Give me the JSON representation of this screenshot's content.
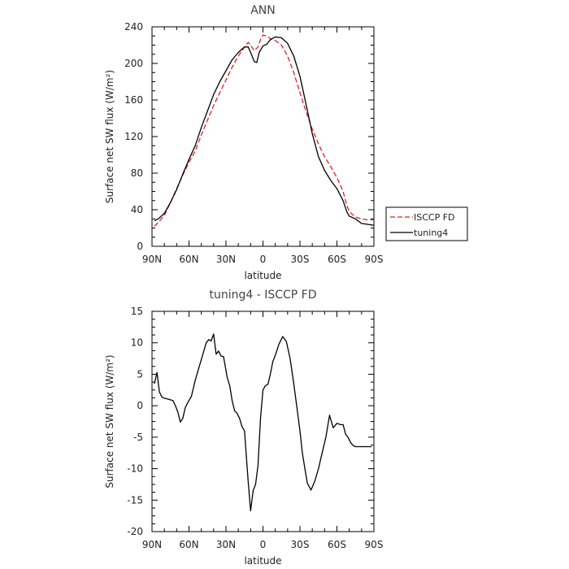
{
  "chart_data": [
    {
      "type": "line",
      "title": "ANN",
      "xlabel": "latitude",
      "ylabel": "Surface net SW flux (W/m²)",
      "xlim": [
        -90,
        90
      ],
      "ylim": [
        0,
        240
      ],
      "xticks": [
        -90,
        -60,
        -30,
        0,
        30,
        60,
        90
      ],
      "xtick_labels": [
        "90N",
        "60N",
        "30N",
        "0",
        "30S",
        "60S",
        "90S"
      ],
      "yticks": [
        0,
        40,
        80,
        120,
        160,
        200,
        240
      ],
      "ytick_labels": [
        "0",
        "40",
        "80",
        "120",
        "160",
        "200",
        "240"
      ],
      "grid": false,
      "legend_position": "right",
      "series": [
        {
          "name": "ISCCP FD",
          "color": "#e02020",
          "dash": "dashed",
          "x": [
            -88,
            -85,
            -80,
            -75,
            -70,
            -65,
            -60,
            -55,
            -50,
            -45,
            -40,
            -35,
            -30,
            -25,
            -20,
            -15,
            -12,
            -10,
            -7,
            -4,
            -2,
            0,
            3,
            6,
            10,
            15,
            20,
            25,
            30,
            35,
            40,
            45,
            50,
            55,
            60,
            65,
            68,
            70,
            75,
            80,
            85,
            90
          ],
          "y": [
            22,
            26,
            34,
            48,
            63,
            78,
            92,
            104,
            122,
            138,
            154,
            168,
            182,
            196,
            208,
            218,
            223,
            220,
            214,
            218,
            226,
            231,
            230,
            227,
            225,
            220,
            208,
            190,
            168,
            147,
            128,
            112,
            98,
            87,
            75,
            60,
            45,
            38,
            32,
            30,
            29,
            29
          ]
        },
        {
          "name": "tuning4",
          "color": "#000000",
          "dash": "solid",
          "x": [
            -88,
            -85,
            -80,
            -75,
            -70,
            -65,
            -60,
            -55,
            -50,
            -45,
            -40,
            -35,
            -30,
            -25,
            -20,
            -15,
            -12,
            -10,
            -7,
            -5,
            -3,
            0,
            3,
            6,
            10,
            15,
            20,
            25,
            30,
            35,
            40,
            45,
            50,
            55,
            60,
            65,
            68,
            70,
            75,
            80,
            85,
            90
          ],
          "y": [
            28,
            30,
            36,
            48,
            62,
            79,
            95,
            110,
            130,
            148,
            166,
            180,
            192,
            204,
            212,
            218,
            218,
            212,
            202,
            201,
            212,
            219,
            221,
            226,
            229,
            228,
            222,
            208,
            186,
            155,
            123,
            98,
            83,
            72,
            63,
            50,
            38,
            33,
            30,
            25,
            24,
            23
          ]
        }
      ]
    },
    {
      "type": "line",
      "title": "tuning4 - ISCCP FD",
      "xlabel": "latitude",
      "ylabel": "Surface net SW flux (W/m²)",
      "xlim": [
        -90,
        90
      ],
      "ylim": [
        -20,
        15
      ],
      "xticks": [
        -90,
        -60,
        -30,
        0,
        30,
        60,
        90
      ],
      "xtick_labels": [
        "90N",
        "60N",
        "30N",
        "0",
        "30S",
        "60S",
        "90S"
      ],
      "yticks": [
        -20,
        -15,
        -10,
        -5,
        0,
        5,
        10,
        15
      ],
      "ytick_labels": [
        "-20",
        "-15",
        "-10",
        "-5",
        "0",
        "5",
        "10",
        "15"
      ],
      "grid": false,
      "series": [
        {
          "color": "#000000",
          "dash": "solid",
          "x": [
            -88,
            -86,
            -84,
            -82,
            -80,
            -76,
            -73,
            -71,
            -69,
            -67,
            -65,
            -63,
            -61,
            -58,
            -55,
            -52,
            -49,
            -46,
            -44,
            -42,
            -40,
            -38,
            -36,
            -34,
            -32,
            -29,
            -27,
            -25,
            -23,
            -21,
            -19,
            -17,
            -15,
            -12,
            -10,
            -8,
            -6,
            -4,
            -2,
            0,
            2,
            4,
            6,
            8,
            10,
            13,
            16,
            19,
            22,
            25,
            28,
            30,
            32,
            34,
            36,
            39,
            42,
            45,
            48,
            51,
            54,
            57,
            60,
            63,
            65,
            67,
            69,
            71,
            73,
            75,
            77,
            80,
            83,
            86,
            88
          ],
          "y": [
            3.5,
            5.3,
            2.2,
            1.4,
            1.2,
            1.0,
            0.8,
            0.0,
            -1.0,
            -2.6,
            -2.0,
            -0.3,
            0.5,
            1.5,
            4.0,
            6.0,
            8.0,
            10.0,
            10.5,
            10.3,
            11.4,
            8.2,
            8.7,
            7.9,
            7.8,
            4.5,
            3.2,
            0.8,
            -0.8,
            -1.2,
            -2.0,
            -3.3,
            -4.0,
            -12.0,
            -16.7,
            -13.5,
            -12.5,
            -9.5,
            -2.0,
            2.5,
            3.2,
            3.4,
            5.0,
            7.0,
            8.0,
            9.8,
            11.0,
            10.2,
            7.5,
            3.5,
            -1.0,
            -4.0,
            -7.5,
            -10.0,
            -12.3,
            -13.4,
            -12.0,
            -10.0,
            -7.5,
            -5.0,
            -1.5,
            -3.5,
            -2.8,
            -3.0,
            -3.0,
            -4.5,
            -5.0,
            -5.8,
            -6.3,
            -6.5,
            -6.5,
            -6.5,
            -6.5,
            -6.5,
            -6.5
          ]
        }
      ]
    }
  ]
}
